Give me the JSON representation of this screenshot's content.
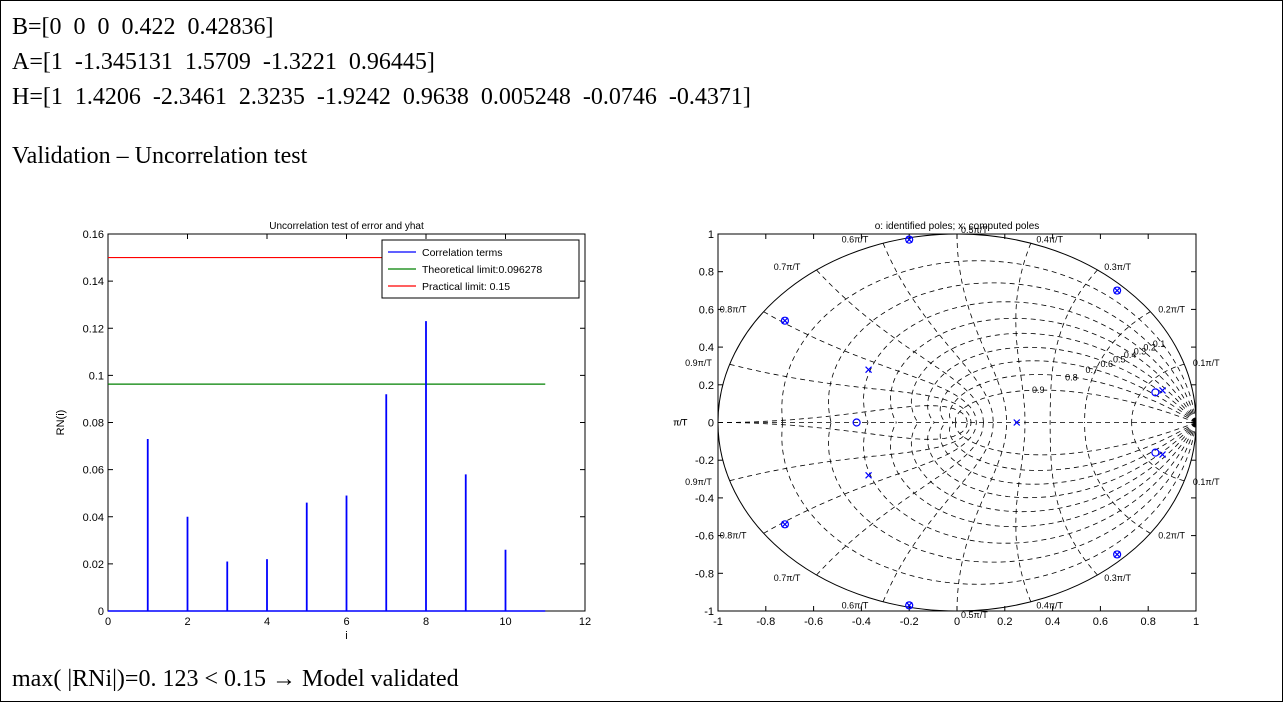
{
  "equations": {
    "B": "B=[0  0  0  0.422  0.42836]",
    "A": "A=[1  -1.345131  1.5709  -1.3221  0.96445]",
    "H": "H=[1  1.4206  -2.3461  2.3235  -1.9242  0.9638  0.005248  -0.0746  -0.4371]"
  },
  "section_title": "Validation – Uncorrelation test",
  "conclusion": "max( |RNi|)=0. 123 < 0.15 → Model validated",
  "chart_data": [
    {
      "type": "bar",
      "title": "Uncorrelation test of error and yhat",
      "xlabel": "i",
      "ylabel": "RN(i)",
      "xlim": [
        0,
        12
      ],
      "ylim": [
        0,
        0.16
      ],
      "xticks": [
        0,
        2,
        4,
        6,
        8,
        10,
        12
      ],
      "yticks": [
        0,
        0.02,
        0.04,
        0.06,
        0.08,
        0.1,
        0.12,
        0.14,
        0.16
      ],
      "xtick_labels": [
        "0",
        "2",
        "4",
        "6",
        "8",
        "10",
        "12"
      ],
      "ytick_labels": [
        "0",
        "0.02",
        "0.04",
        "0.06",
        "0.08",
        "0.1",
        "0.12",
        "0.14",
        "0.16"
      ],
      "x": [
        1,
        2,
        3,
        4,
        5,
        6,
        7,
        8,
        9,
        10
      ],
      "values": [
        0.073,
        0.04,
        0.021,
        0.022,
        0.046,
        0.049,
        0.092,
        0.123,
        0.058,
        0.026
      ],
      "series": [
        {
          "name": "Correlation terms",
          "color": "#0000ff"
        },
        {
          "name": "Theoretical limit:0.096278",
          "color": "#008000",
          "value": 0.096278,
          "x_range": [
            0,
            11
          ]
        },
        {
          "name": "Practical limit: 0.15",
          "color": "#ff0000",
          "value": 0.15,
          "x_range": [
            0,
            11
          ]
        }
      ],
      "baseline_x_range": [
        0,
        11
      ],
      "legend": "top-right",
      "grid": false
    },
    {
      "type": "scatter",
      "title": "o: identified poles; x: computed poles",
      "xlim": [
        -1,
        1
      ],
      "ylim": [
        -1,
        1
      ],
      "xticks": [
        -1,
        -0.8,
        -0.6,
        -0.4,
        -0.2,
        0,
        0.2,
        0.4,
        0.6,
        0.8,
        1
      ],
      "yticks": [
        -1,
        -0.8,
        -0.6,
        -0.4,
        -0.2,
        0,
        0.2,
        0.4,
        0.6,
        0.8,
        1
      ],
      "xtick_labels": [
        "-1",
        "-0.8",
        "-0.6",
        "-0.4",
        "-0.2",
        "0",
        "0.2",
        "0.4",
        "0.6",
        "0.8",
        "1"
      ],
      "ytick_labels": [
        "-1",
        "-0.8",
        "-0.6",
        "-0.4",
        "-0.2",
        "0",
        "0.2",
        "0.4",
        "0.6",
        "0.8",
        "1"
      ],
      "grid": "zgrid",
      "zeta_labels": [
        "0.1",
        "0.2",
        "0.3",
        "0.4",
        "0.5",
        "0.6",
        "0.7",
        "0.8",
        "0.9"
      ],
      "wn_labels": [
        "0.1π/T",
        "0.2π/T",
        "0.3π/T",
        "0.4π/T",
        "0.5π/T",
        "0.6π/T",
        "0.7π/T",
        "0.8π/T",
        "0.9π/T",
        "π/T"
      ],
      "identified_poles": [
        {
          "x": -0.2,
          "y": 0.97
        },
        {
          "x": -0.2,
          "y": -0.97
        },
        {
          "x": 0.67,
          "y": 0.7
        },
        {
          "x": 0.67,
          "y": -0.7
        },
        {
          "x": -0.72,
          "y": 0.54
        },
        {
          "x": -0.72,
          "y": -0.54
        },
        {
          "x": 0.83,
          "y": 0.16
        },
        {
          "x": 0.83,
          "y": -0.16
        },
        {
          "x": -0.42,
          "y": 0.0
        }
      ],
      "computed_poles": [
        {
          "x": -0.2,
          "y": 0.97
        },
        {
          "x": -0.2,
          "y": -0.97
        },
        {
          "x": 0.67,
          "y": 0.7
        },
        {
          "x": 0.67,
          "y": -0.7
        },
        {
          "x": -0.72,
          "y": 0.54
        },
        {
          "x": -0.72,
          "y": -0.54
        },
        {
          "x": 0.86,
          "y": 0.17
        },
        {
          "x": 0.86,
          "y": -0.17
        },
        {
          "x": -0.37,
          "y": 0.28
        },
        {
          "x": -0.37,
          "y": -0.28
        },
        {
          "x": 0.25,
          "y": 0.0
        }
      ],
      "color": "#0000ff"
    }
  ]
}
